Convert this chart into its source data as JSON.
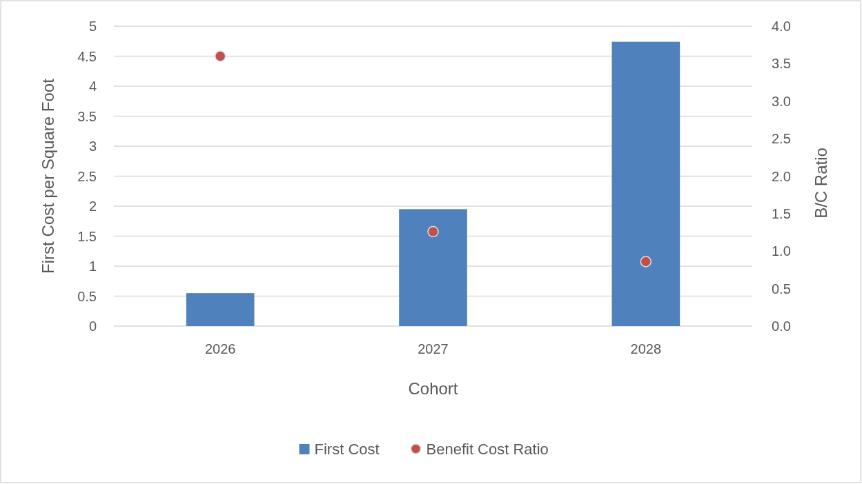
{
  "chart_data": {
    "type": "bar",
    "categories": [
      "2026",
      "2027",
      "2028"
    ],
    "xlabel": "Cohort",
    "ylabel": "First Cost per Square Foot",
    "y2label": "B/C Ratio",
    "ylim": [
      0,
      5
    ],
    "yticks": [
      0,
      0.5,
      1,
      1.5,
      2,
      2.5,
      3,
      3.5,
      4,
      4.5,
      5
    ],
    "y2lim": [
      0,
      4
    ],
    "y2ticks": [
      {
        "value": 0,
        "label": "0.0"
      },
      {
        "value": 0.5,
        "label": "0.5"
      },
      {
        "value": 1,
        "label": "1.0"
      },
      {
        "value": 1.5,
        "label": "1.5"
      },
      {
        "value": 2,
        "label": "2.0"
      },
      {
        "value": 2.5,
        "label": "2.5"
      },
      {
        "value": 3,
        "label": "3.0"
      },
      {
        "value": 3.5,
        "label": "3.5"
      },
      {
        "value": 4,
        "label": "4.0"
      }
    ],
    "grid": "y",
    "legend": "bottom",
    "series": [
      {
        "name": "First Cost",
        "color": "#4f81bd",
        "values": [
          0.55,
          1.95,
          4.74
        ]
      },
      {
        "name": "Benefit Cost Ratio",
        "type": "scatter",
        "axis": "y2",
        "marker": "circle",
        "color": "#c0504d",
        "values": [
          3.6,
          1.26,
          0.86
        ]
      }
    ]
  }
}
